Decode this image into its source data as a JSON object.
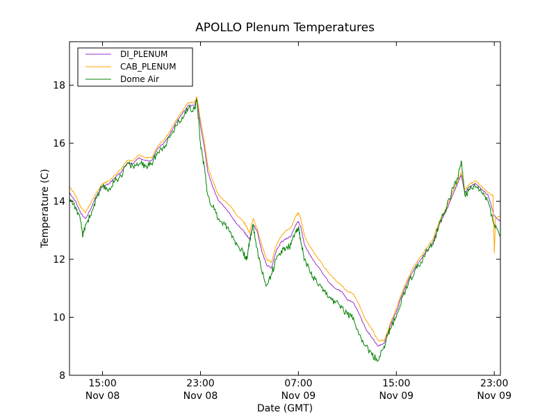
{
  "chart_data": {
    "type": "line",
    "title": "APOLLO Plenum Temperatures",
    "xlabel": "Date (GMT)",
    "ylabel": "Temperature (C)",
    "x_unit": "hours since Nov 08 00:00 GMT",
    "xlim": [
      12.3,
      47.5
    ],
    "ylim": [
      8,
      19.5
    ],
    "y_ticks": [
      8,
      10,
      12,
      14,
      16,
      18
    ],
    "x_ticks": [
      {
        "x": 15,
        "time": "15:00",
        "date": "Nov 08"
      },
      {
        "x": 23,
        "time": "23:00",
        "date": "Nov 08"
      },
      {
        "x": 31,
        "time": "07:00",
        "date": "Nov 09"
      },
      {
        "x": 39,
        "time": "15:00",
        "date": "Nov 09"
      },
      {
        "x": 47,
        "time": "23:00",
        "date": "Nov 09"
      }
    ],
    "grid": false,
    "legend_position": "top-left",
    "series": [
      {
        "name": "DI_PLENUM",
        "color": "#9932cc",
        "points": [
          [
            12.3,
            14.3
          ],
          [
            12.8,
            14.0
          ],
          [
            13.2,
            13.6
          ],
          [
            13.6,
            13.4
          ],
          [
            14.0,
            13.7
          ],
          [
            14.5,
            14.2
          ],
          [
            15.0,
            14.5
          ],
          [
            15.5,
            14.6
          ],
          [
            16.0,
            14.8
          ],
          [
            16.5,
            15.0
          ],
          [
            17.0,
            15.3
          ],
          [
            17.5,
            15.3
          ],
          [
            18.0,
            15.5
          ],
          [
            18.5,
            15.4
          ],
          [
            19.0,
            15.4
          ],
          [
            19.5,
            15.8
          ],
          [
            20.0,
            16.0
          ],
          [
            20.5,
            16.3
          ],
          [
            21.0,
            16.7
          ],
          [
            21.5,
            17.0
          ],
          [
            22.0,
            17.3
          ],
          [
            22.5,
            17.3
          ],
          [
            22.7,
            17.5
          ],
          [
            23.0,
            16.6
          ],
          [
            23.3,
            15.9
          ],
          [
            23.6,
            15.0
          ],
          [
            24.0,
            14.5
          ],
          [
            24.5,
            14.0
          ],
          [
            25.0,
            13.8
          ],
          [
            25.5,
            13.5
          ],
          [
            26.0,
            13.2
          ],
          [
            26.5,
            13.0
          ],
          [
            26.8,
            12.8
          ],
          [
            27.0,
            12.7
          ],
          [
            27.3,
            13.2
          ],
          [
            27.6,
            13.0
          ],
          [
            28.0,
            12.3
          ],
          [
            28.4,
            11.8
          ],
          [
            28.8,
            11.7
          ],
          [
            29.2,
            12.3
          ],
          [
            29.6,
            12.6
          ],
          [
            30.0,
            12.7
          ],
          [
            30.4,
            12.8
          ],
          [
            30.8,
            13.2
          ],
          [
            31.0,
            13.3
          ],
          [
            31.2,
            13.1
          ],
          [
            31.5,
            12.5
          ],
          [
            32.0,
            12.1
          ],
          [
            32.5,
            11.8
          ],
          [
            33.0,
            11.5
          ],
          [
            33.5,
            11.2
          ],
          [
            34.0,
            11.0
          ],
          [
            34.5,
            10.9
          ],
          [
            35.0,
            10.6
          ],
          [
            35.5,
            10.5
          ],
          [
            36.0,
            10.1
          ],
          [
            36.5,
            9.6
          ],
          [
            37.0,
            9.3
          ],
          [
            37.5,
            9.0
          ],
          [
            38.0,
            9.1
          ],
          [
            38.3,
            9.4
          ],
          [
            38.5,
            9.7
          ],
          [
            39.0,
            10.2
          ],
          [
            39.5,
            10.8
          ],
          [
            40.0,
            11.3
          ],
          [
            40.5,
            11.7
          ],
          [
            41.0,
            12.0
          ],
          [
            41.5,
            12.3
          ],
          [
            42.0,
            12.6
          ],
          [
            42.5,
            13.2
          ],
          [
            43.0,
            13.6
          ],
          [
            43.5,
            14.1
          ],
          [
            44.0,
            14.6
          ],
          [
            44.3,
            14.9
          ],
          [
            44.6,
            14.3
          ],
          [
            45.0,
            14.5
          ],
          [
            45.5,
            14.6
          ],
          [
            46.0,
            14.4
          ],
          [
            46.5,
            14.2
          ],
          [
            47.0,
            13.5
          ],
          [
            47.5,
            13.3
          ]
        ]
      },
      {
        "name": "CAB_PLENUM",
        "color": "#ffa500",
        "points": [
          [
            12.3,
            14.5
          ],
          [
            12.8,
            14.2
          ],
          [
            13.2,
            13.8
          ],
          [
            13.6,
            13.6
          ],
          [
            14.0,
            13.9
          ],
          [
            14.5,
            14.3
          ],
          [
            15.0,
            14.6
          ],
          [
            15.5,
            14.7
          ],
          [
            16.0,
            14.9
          ],
          [
            16.5,
            15.1
          ],
          [
            17.0,
            15.4
          ],
          [
            17.5,
            15.4
          ],
          [
            18.0,
            15.6
          ],
          [
            18.5,
            15.5
          ],
          [
            19.0,
            15.5
          ],
          [
            19.5,
            15.9
          ],
          [
            20.0,
            16.1
          ],
          [
            20.5,
            16.4
          ],
          [
            21.0,
            16.8
          ],
          [
            21.5,
            17.1
          ],
          [
            22.0,
            17.4
          ],
          [
            22.5,
            17.4
          ],
          [
            22.7,
            17.6
          ],
          [
            23.0,
            16.8
          ],
          [
            23.3,
            16.1
          ],
          [
            23.6,
            15.2
          ],
          [
            24.0,
            14.7
          ],
          [
            24.5,
            14.2
          ],
          [
            25.0,
            14.0
          ],
          [
            25.5,
            13.8
          ],
          [
            26.0,
            13.5
          ],
          [
            26.5,
            13.3
          ],
          [
            26.8,
            13.1
          ],
          [
            27.0,
            12.9
          ],
          [
            27.3,
            13.4
          ],
          [
            27.6,
            13.1
          ],
          [
            28.0,
            12.5
          ],
          [
            28.4,
            12.0
          ],
          [
            28.8,
            11.9
          ],
          [
            29.2,
            12.5
          ],
          [
            29.6,
            12.8
          ],
          [
            30.0,
            13.0
          ],
          [
            30.4,
            13.1
          ],
          [
            30.8,
            13.5
          ],
          [
            31.0,
            13.6
          ],
          [
            31.2,
            13.4
          ],
          [
            31.5,
            12.8
          ],
          [
            32.0,
            12.4
          ],
          [
            32.5,
            12.1
          ],
          [
            33.0,
            11.8
          ],
          [
            33.5,
            11.5
          ],
          [
            34.0,
            11.3
          ],
          [
            34.5,
            11.1
          ],
          [
            35.0,
            10.9
          ],
          [
            35.5,
            10.8
          ],
          [
            36.0,
            10.4
          ],
          [
            36.5,
            9.9
          ],
          [
            37.0,
            9.6
          ],
          [
            37.5,
            9.2
          ],
          [
            38.0,
            9.2
          ],
          [
            38.3,
            9.5
          ],
          [
            38.5,
            9.8
          ],
          [
            39.0,
            10.3
          ],
          [
            39.5,
            10.9
          ],
          [
            40.0,
            11.4
          ],
          [
            40.5,
            11.8
          ],
          [
            41.0,
            12.1
          ],
          [
            41.5,
            12.4
          ],
          [
            42.0,
            12.7
          ],
          [
            42.5,
            13.3
          ],
          [
            43.0,
            13.7
          ],
          [
            43.5,
            14.2
          ],
          [
            44.0,
            14.7
          ],
          [
            44.3,
            15.0
          ],
          [
            44.6,
            14.4
          ],
          [
            45.0,
            14.6
          ],
          [
            45.5,
            14.7
          ],
          [
            46.0,
            14.5
          ],
          [
            46.5,
            14.3
          ],
          [
            46.9,
            14.2
          ],
          [
            47.0,
            12.2
          ],
          [
            47.1,
            13.4
          ],
          [
            47.5,
            13.5
          ]
        ]
      },
      {
        "name": "Dome Air",
        "color": "#008000",
        "points": [
          [
            12.3,
            14.1
          ],
          [
            12.8,
            13.8
          ],
          [
            13.2,
            13.3
          ],
          [
            13.4,
            12.8
          ],
          [
            13.6,
            13.2
          ],
          [
            14.0,
            13.5
          ],
          [
            14.5,
            14.1
          ],
          [
            15.0,
            14.5
          ],
          [
            15.5,
            14.4
          ],
          [
            16.0,
            14.7
          ],
          [
            16.5,
            14.9
          ],
          [
            17.0,
            15.3
          ],
          [
            17.5,
            15.2
          ],
          [
            18.0,
            15.3
          ],
          [
            18.5,
            15.2
          ],
          [
            19.0,
            15.3
          ],
          [
            19.5,
            15.7
          ],
          [
            20.0,
            15.9
          ],
          [
            20.5,
            16.2
          ],
          [
            21.0,
            16.6
          ],
          [
            21.5,
            16.9
          ],
          [
            22.0,
            17.2
          ],
          [
            22.5,
            17.2
          ],
          [
            22.7,
            17.5
          ],
          [
            23.0,
            16.0
          ],
          [
            23.3,
            15.2
          ],
          [
            23.6,
            14.2
          ],
          [
            24.0,
            13.8
          ],
          [
            24.5,
            13.4
          ],
          [
            25.0,
            13.2
          ],
          [
            25.5,
            12.9
          ],
          [
            26.0,
            12.5
          ],
          [
            26.5,
            12.2
          ],
          [
            26.8,
            12.0
          ],
          [
            27.0,
            12.6
          ],
          [
            27.3,
            13.2
          ],
          [
            27.6,
            12.4
          ],
          [
            28.0,
            11.6
          ],
          [
            28.4,
            11.1
          ],
          [
            28.8,
            11.5
          ],
          [
            29.2,
            12.0
          ],
          [
            29.6,
            12.3
          ],
          [
            30.0,
            12.4
          ],
          [
            30.4,
            12.5
          ],
          [
            30.8,
            13.0
          ],
          [
            31.0,
            13.1
          ],
          [
            31.2,
            12.6
          ],
          [
            31.5,
            12.0
          ],
          [
            32.0,
            11.5
          ],
          [
            32.5,
            11.2
          ],
          [
            33.0,
            10.9
          ],
          [
            33.5,
            10.7
          ],
          [
            34.0,
            10.5
          ],
          [
            34.5,
            10.4
          ],
          [
            35.0,
            10.1
          ],
          [
            35.5,
            10.0
          ],
          [
            36.0,
            9.4
          ],
          [
            36.5,
            9.0
          ],
          [
            37.0,
            8.7
          ],
          [
            37.5,
            8.5
          ],
          [
            38.0,
            9.0
          ],
          [
            38.3,
            9.4
          ],
          [
            38.5,
            9.6
          ],
          [
            39.0,
            10.0
          ],
          [
            39.5,
            10.7
          ],
          [
            40.0,
            11.2
          ],
          [
            40.5,
            11.6
          ],
          [
            41.0,
            11.9
          ],
          [
            41.5,
            12.3
          ],
          [
            42.0,
            12.5
          ],
          [
            42.5,
            13.2
          ],
          [
            43.0,
            13.7
          ],
          [
            43.5,
            14.3
          ],
          [
            44.0,
            14.8
          ],
          [
            44.3,
            15.4
          ],
          [
            44.6,
            14.2
          ],
          [
            45.0,
            14.4
          ],
          [
            45.5,
            14.5
          ],
          [
            46.0,
            14.3
          ],
          [
            46.5,
            14.0
          ],
          [
            47.0,
            13.2
          ],
          [
            47.5,
            12.8
          ]
        ]
      }
    ]
  }
}
